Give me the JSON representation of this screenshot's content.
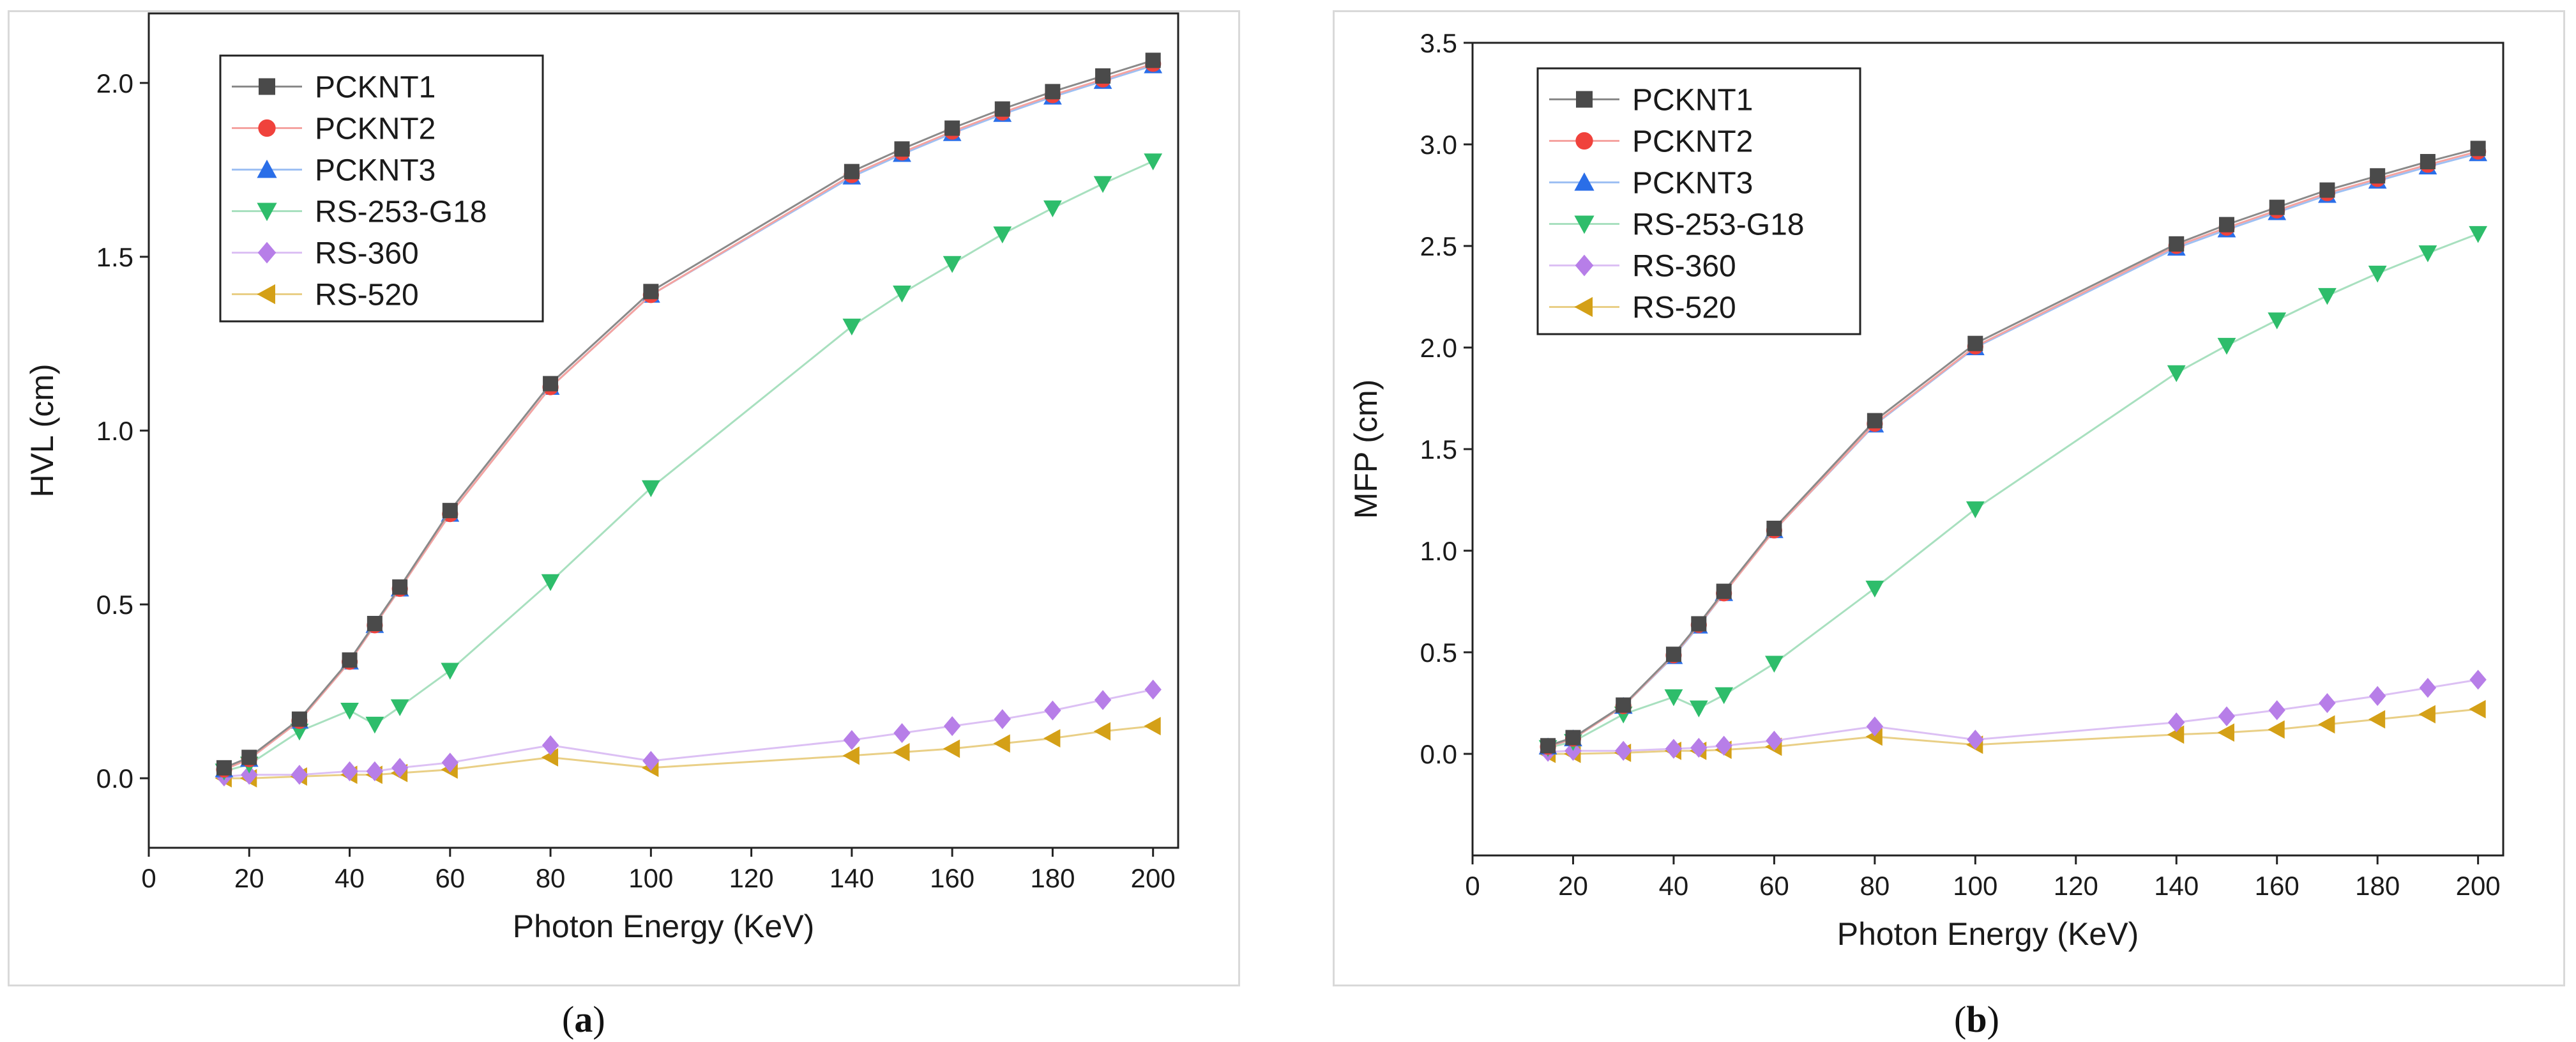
{
  "chart_data": [
    {
      "type": "line",
      "panel": "(a)",
      "xlabel": "Photon Energy (KeV)",
      "ylabel": "HVL (cm)",
      "xlim": [
        0,
        205
      ],
      "ylim": [
        -0.2,
        2.2
      ],
      "xticks": [
        0,
        20,
        40,
        60,
        80,
        100,
        120,
        140,
        160,
        180,
        200
      ],
      "yticks": [
        0.0,
        0.5,
        1.0,
        1.5,
        2.0
      ],
      "ytick_labels": [
        "0.0",
        "0.5",
        "1.0",
        "1.5",
        "2.0"
      ],
      "legend_position": "top-left",
      "x": [
        15,
        20,
        30,
        40,
        45,
        50,
        60,
        80,
        100,
        140,
        150,
        160,
        170,
        180,
        190,
        200
      ],
      "series": [
        {
          "name": "PCKNT1",
          "marker": "square",
          "color": "#4a4a4a",
          "line_color": "#8a8a8a",
          "values": [
            0.03,
            0.06,
            0.17,
            0.34,
            0.445,
            0.55,
            0.77,
            1.135,
            1.4,
            1.745,
            1.81,
            1.87,
            1.925,
            1.975,
            2.02,
            2.065
          ]
        },
        {
          "name": "PCKNT2",
          "marker": "circle",
          "color": "#f0423c",
          "line_color": "#f5a3a0",
          "values": [
            0.025,
            0.055,
            0.165,
            0.335,
            0.44,
            0.545,
            0.76,
            1.125,
            1.39,
            1.735,
            1.8,
            1.86,
            1.915,
            1.965,
            2.01,
            2.055
          ]
        },
        {
          "name": "PCKNT3",
          "marker": "triangle-up",
          "color": "#2a6ee8",
          "line_color": "#9ec0f3",
          "values": [
            0.025,
            0.055,
            0.165,
            0.335,
            0.44,
            0.545,
            0.76,
            1.125,
            1.39,
            1.73,
            1.795,
            1.855,
            1.91,
            1.96,
            2.005,
            2.05
          ]
        },
        {
          "name": "RS-253-G18",
          "marker": "triangle-down",
          "color": "#2ebd6b",
          "line_color": "#a8e0bf",
          "values": [
            0.02,
            0.04,
            0.135,
            0.195,
            0.155,
            0.205,
            0.31,
            0.565,
            0.835,
            1.3,
            1.395,
            1.48,
            1.565,
            1.64,
            1.71,
            1.775
          ]
        },
        {
          "name": "RS-360",
          "marker": "diamond",
          "color": "#b77ee8",
          "line_color": "#dcc0f4",
          "values": [
            0.005,
            0.01,
            0.01,
            0.02,
            0.02,
            0.03,
            0.045,
            0.095,
            0.05,
            0.11,
            0.13,
            0.15,
            0.17,
            0.195,
            0.225,
            0.255
          ]
        },
        {
          "name": "RS-520",
          "marker": "triangle-left",
          "color": "#d4a017",
          "line_color": "#e9cf86",
          "values": [
            0.0,
            0.0,
            0.005,
            0.01,
            0.01,
            0.015,
            0.025,
            0.06,
            0.03,
            0.065,
            0.075,
            0.085,
            0.1,
            0.115,
            0.135,
            0.15
          ]
        }
      ]
    },
    {
      "type": "line",
      "panel": "(b)",
      "xlabel": "Photon Energy (KeV)",
      "ylabel": "MFP (cm)",
      "xlim": [
        0,
        205
      ],
      "ylim": [
        -0.5,
        3.5
      ],
      "xticks": [
        0,
        20,
        40,
        60,
        80,
        100,
        120,
        140,
        160,
        180,
        200
      ],
      "yticks": [
        0.0,
        0.5,
        1.0,
        1.5,
        2.0,
        2.5,
        3.0,
        3.5
      ],
      "ytick_labels": [
        "0.0",
        "0.5",
        "1.0",
        "1.5",
        "2.0",
        "2.5",
        "3.0",
        "3.5"
      ],
      "legend_position": "top-left",
      "x": [
        15,
        20,
        30,
        40,
        45,
        50,
        60,
        80,
        100,
        140,
        150,
        160,
        170,
        180,
        190,
        200
      ],
      "series": [
        {
          "name": "PCKNT1",
          "marker": "square",
          "color": "#4a4a4a",
          "line_color": "#8a8a8a",
          "values": [
            0.04,
            0.08,
            0.24,
            0.49,
            0.64,
            0.8,
            1.11,
            1.64,
            2.02,
            2.51,
            2.605,
            2.69,
            2.775,
            2.845,
            2.915,
            2.98
          ]
        },
        {
          "name": "PCKNT2",
          "marker": "circle",
          "color": "#f0423c",
          "line_color": "#f5a3a0",
          "values": [
            0.035,
            0.075,
            0.235,
            0.485,
            0.635,
            0.79,
            1.1,
            1.625,
            2.005,
            2.5,
            2.59,
            2.675,
            2.76,
            2.83,
            2.9,
            2.965
          ]
        },
        {
          "name": "PCKNT3",
          "marker": "triangle-up",
          "color": "#2a6ee8",
          "line_color": "#9ec0f3",
          "values": [
            0.035,
            0.075,
            0.235,
            0.48,
            0.63,
            0.79,
            1.1,
            1.62,
            2.0,
            2.49,
            2.58,
            2.665,
            2.75,
            2.82,
            2.89,
            2.955
          ]
        },
        {
          "name": "RS-253-G18",
          "marker": "triangle-down",
          "color": "#2ebd6b",
          "line_color": "#a8e0bf",
          "values": [
            0.03,
            0.06,
            0.195,
            0.28,
            0.225,
            0.29,
            0.445,
            0.815,
            1.205,
            1.875,
            2.01,
            2.135,
            2.255,
            2.365,
            2.465,
            2.56
          ]
        },
        {
          "name": "RS-360",
          "marker": "diamond",
          "color": "#b77ee8",
          "line_color": "#dcc0f4",
          "values": [
            0.01,
            0.015,
            0.015,
            0.025,
            0.03,
            0.04,
            0.065,
            0.135,
            0.07,
            0.155,
            0.185,
            0.215,
            0.25,
            0.285,
            0.325,
            0.365
          ]
        },
        {
          "name": "RS-520",
          "marker": "triangle-left",
          "color": "#d4a017",
          "line_color": "#e9cf86",
          "values": [
            0.0,
            0.0,
            0.005,
            0.015,
            0.015,
            0.02,
            0.035,
            0.085,
            0.045,
            0.095,
            0.105,
            0.12,
            0.145,
            0.17,
            0.195,
            0.22
          ]
        }
      ]
    }
  ],
  "captions": {
    "a": "a",
    "b": "b"
  }
}
